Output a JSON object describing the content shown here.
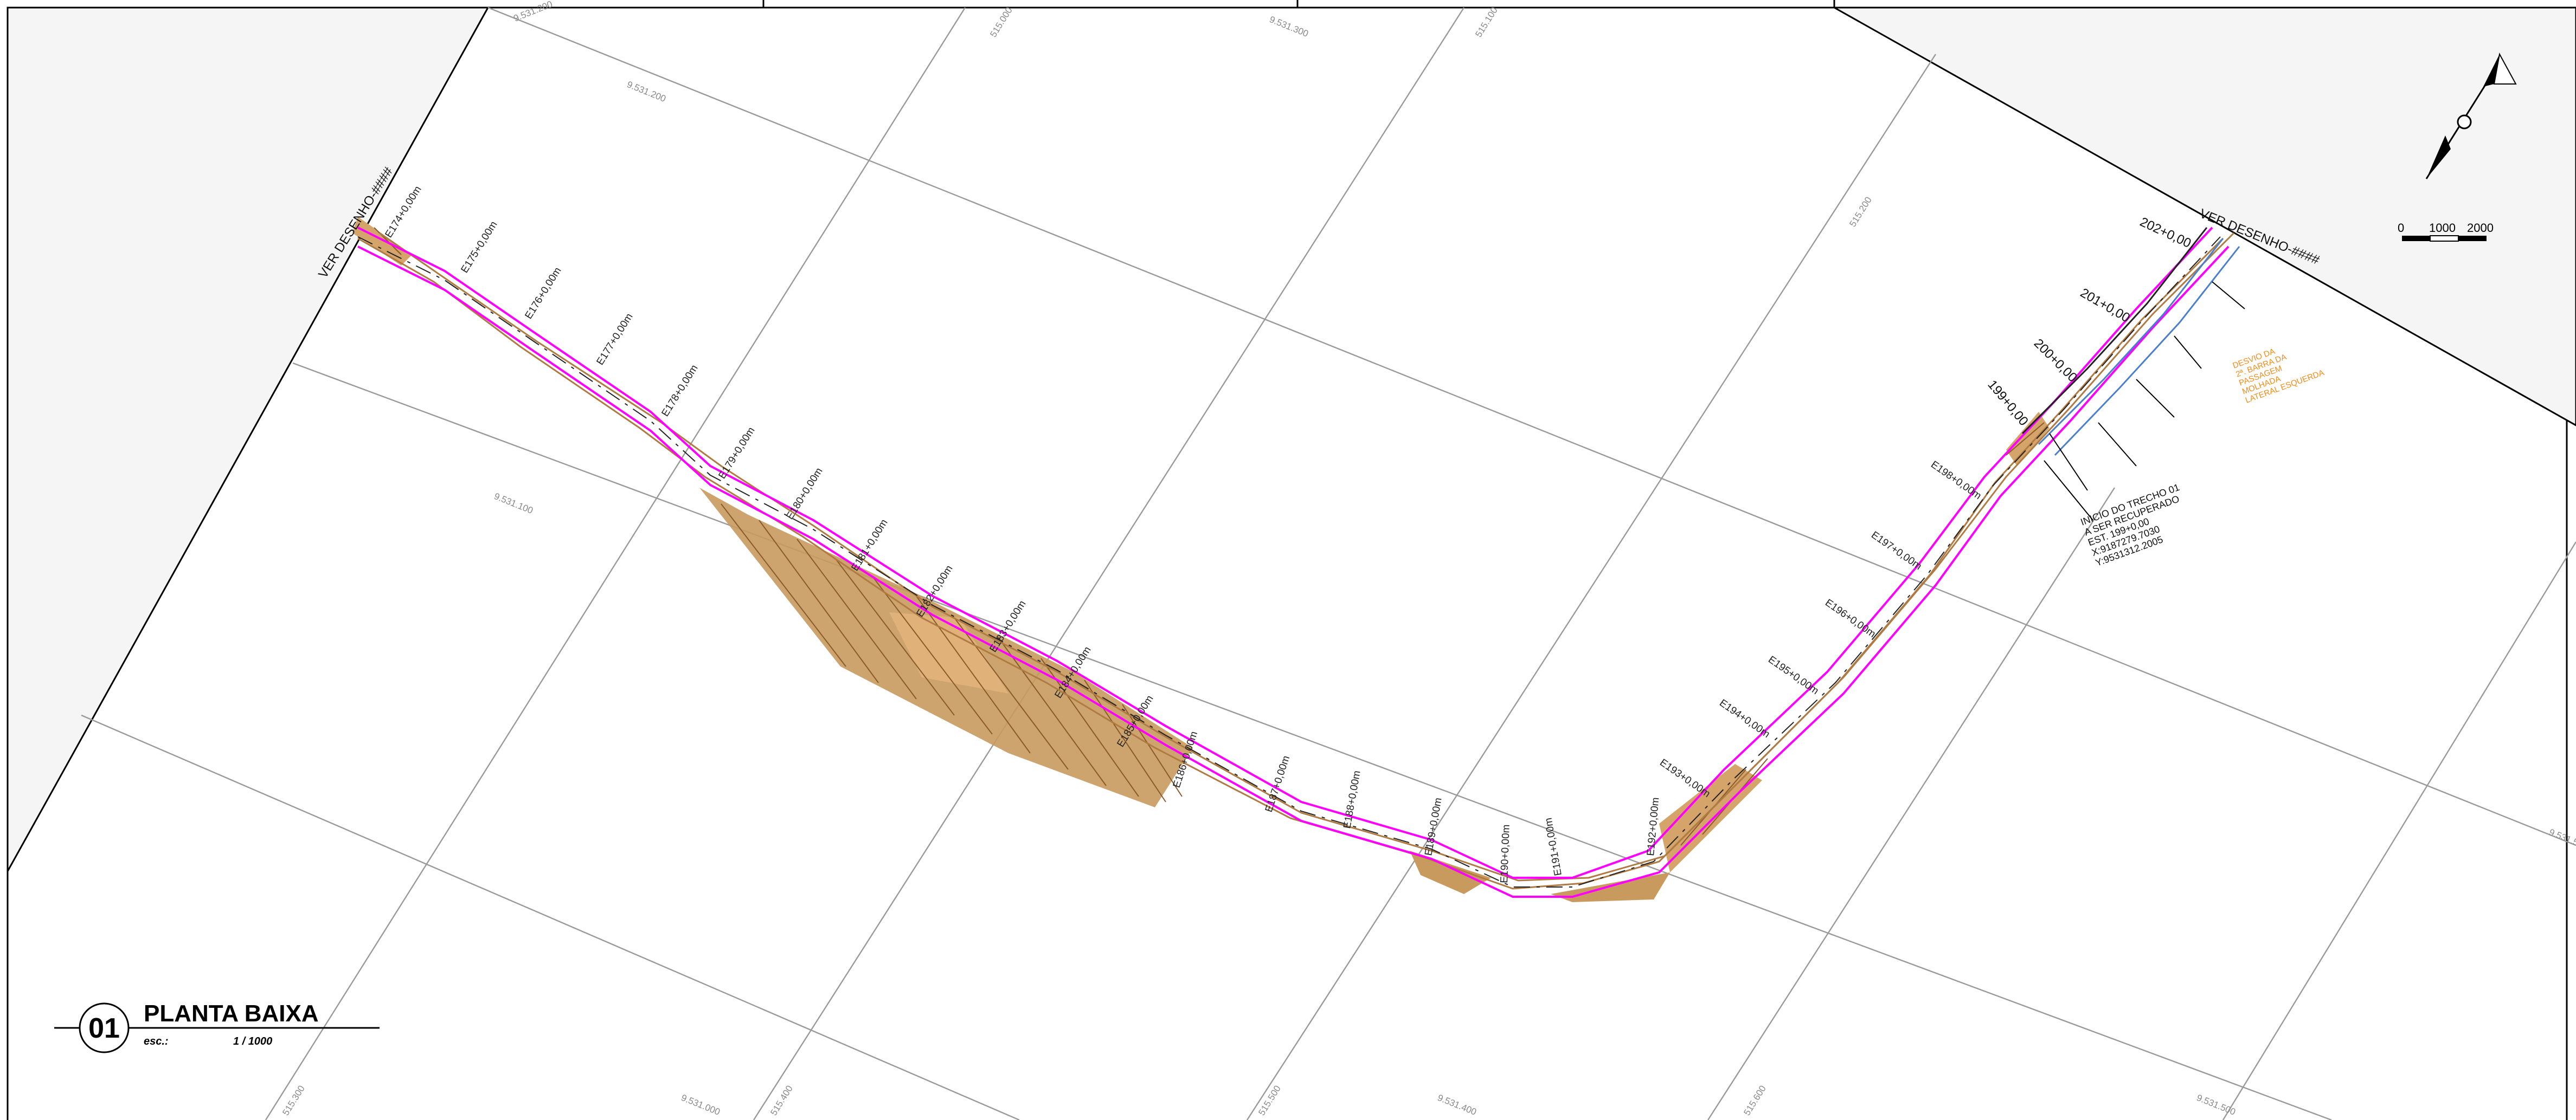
{
  "title": {
    "number": "01",
    "text": "PLANTA BAIXA",
    "scale_label": "esc.:",
    "scale_value": "1 / 1000"
  },
  "match_lines": {
    "left": "VER DESENHO-####",
    "right": "VER DESENHO-####"
  },
  "scale_bar": {
    "labels": [
      "0",
      "1000",
      "2000"
    ]
  },
  "north_arrow": {
    "icon": "north-arrow-icon"
  },
  "stations_left": [
    "E174+0,00m",
    "E175+0,00m",
    "E176+0,00m",
    "E177+0,00m",
    "E178+0,00m",
    "E179+0,00m",
    "E180+0,00m",
    "E181+0,00m",
    "E182+0,00m",
    "E183+0,00m",
    "E184+0,00m",
    "E185+0,00m",
    "E186+0,00m",
    "E187+0,00m",
    "E188+0,00m",
    "E189+0,00m",
    "E190+0,00m",
    "E191+0,00m",
    "E192+0,00m",
    "E193+0,00m",
    "E194+0,00m",
    "E195+0,00m",
    "E196+0,00m",
    "E197+0,00m",
    "E198+0,00m"
  ],
  "stations_right": [
    "199+0,00",
    "200+0,00",
    "201+0,00",
    "202+0,00"
  ],
  "start_note": [
    "INICIO DO TRECHO 01",
    "A SER RECUPERADO",
    "EST. 199+0,00",
    "X:9187279.7030",
    "Y:9531312.2005"
  ],
  "orange_note": [
    "DESVIO DA",
    "2ª. BARRA DA",
    "PASSAGEM",
    "MOLHADA",
    "LATERAL ESQUERDA"
  ],
  "grid_labels": [
    "9.531.200",
    "9.531.100",
    "9.531.000",
    "515.000",
    "515.100",
    "515.200",
    "515.300",
    "515.400",
    "515.500",
    "515.600",
    "9.531.300",
    "9.531.400",
    "9.531.500"
  ],
  "colors": {
    "alignment": "#ff00ff",
    "slope_fill": "#c08a4b",
    "hatch": "#8b5a2b",
    "grid": "#9a9a9a",
    "annotation_orange": "#f28c1a",
    "water": "#4a7fd0"
  }
}
